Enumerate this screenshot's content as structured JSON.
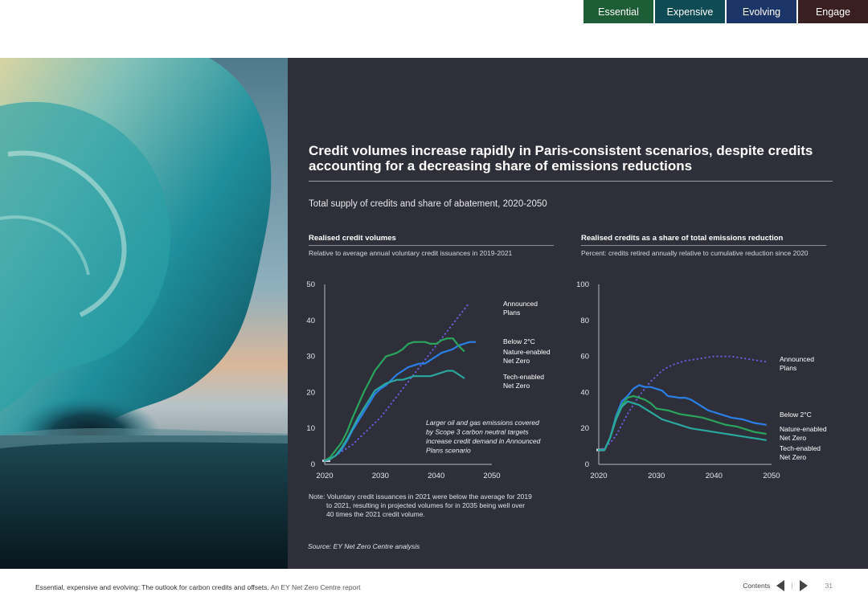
{
  "nav": {
    "tabs": [
      "Essential",
      "Expensive",
      "Evolving",
      "Engage"
    ]
  },
  "panel": {
    "title": "Credit volumes increase rapidly in Paris-consistent scenarios, despite credits accounting for a decreasing share of emissions reductions",
    "subtitle": "Total supply of credits and share of abatement, 2020-2050"
  },
  "left_chart": {
    "heading": "Realised credit volumes",
    "description": "Relative to average annual voluntary credit issuances in 2019-2021",
    "annotation": [
      "Larger oil and gas emissions covered",
      "by Scope 3 carbon neutral targets",
      "increase credit demand in Announced",
      "Plans scenario"
    ]
  },
  "right_chart": {
    "heading": "Realised credits as a share of total emissions reduction",
    "description": "Percent: credits retired annually relative to cumulative reduction since 2020"
  },
  "chart_data": [
    {
      "type": "line",
      "title": "Realised credit volumes",
      "ylim": [
        0,
        50
      ],
      "xlim": [
        2020,
        2050
      ],
      "xticks": [
        "2020",
        "2030",
        "2040",
        "2050"
      ],
      "yticks": [
        "0",
        "10",
        "20",
        "30",
        "40",
        "50"
      ],
      "x": [
        2020,
        2021,
        2022,
        2023,
        2024,
        2025,
        2026,
        2027,
        2028,
        2029,
        2030,
        2031,
        2032,
        2033,
        2034,
        2035,
        2036,
        2037,
        2038,
        2039,
        2040,
        2041,
        2042,
        2043,
        2044,
        2045,
        2046,
        2047,
        2048,
        2049,
        2050
      ],
      "series": [
        {
          "name": "Announced Plans",
          "color": "#6a5ce0",
          "dash": "dotted",
          "values": [
            1,
            1.5,
            2.5,
            3.5,
            4.5,
            5.5,
            7,
            8.5,
            10,
            11.5,
            13,
            15,
            17,
            19,
            21,
            23,
            25,
            27,
            29,
            31,
            33,
            35,
            37,
            39,
            41,
            43,
            45,
            null,
            null,
            null,
            null
          ]
        },
        {
          "name": "Below 2°C",
          "color": "#2a7fe8",
          "dash": "solid",
          "values": [
            1,
            1.5,
            2.5,
            4,
            6.5,
            9.5,
            12,
            14.5,
            17,
            19.5,
            21,
            22,
            23.5,
            25,
            26,
            27,
            27.5,
            28,
            28,
            29,
            30,
            31,
            31.5,
            32,
            33,
            33.5,
            34,
            34,
            null,
            null,
            null
          ]
        },
        {
          "name": "Nature-enabled Net Zero",
          "color": "#2aa55c",
          "dash": "solid",
          "values": [
            1,
            2,
            4,
            6,
            9,
            13,
            16.5,
            20,
            23,
            26,
            28,
            30,
            30.5,
            31,
            32,
            33.5,
            34,
            34,
            34,
            33.5,
            33.5,
            34.5,
            35,
            35,
            33,
            31.5,
            null,
            null,
            null,
            null,
            null
          ]
        },
        {
          "name": "Tech-enabled Net Zero",
          "color": "#2aa8a0",
          "dash": "solid",
          "values": [
            1,
            1.5,
            2.5,
            4.5,
            7,
            10,
            13,
            15.5,
            18,
            20.5,
            21.5,
            22.5,
            23,
            23.5,
            23.5,
            24,
            24.5,
            24.5,
            24.5,
            24.5,
            25,
            25.5,
            26,
            26,
            25,
            24,
            null,
            null,
            null,
            null,
            null
          ]
        }
      ],
      "labels": [
        "Announced",
        "Plans",
        "Below 2°C",
        "Nature-enabled",
        "Net Zero",
        "Tech-enabled",
        "Net Zero"
      ]
    },
    {
      "type": "line",
      "title": "Realised credits as a share of total emissions reduction",
      "ylim": [
        0,
        100
      ],
      "xlim": [
        2020,
        2050
      ],
      "xticks": [
        "2020",
        "2030",
        "2040",
        "2050"
      ],
      "yticks": [
        "0",
        "20",
        "40",
        "60",
        "80",
        "100"
      ],
      "x": [
        2020,
        2021,
        2022,
        2023,
        2024,
        2025,
        2026,
        2027,
        2028,
        2029,
        2030,
        2031,
        2032,
        2033,
        2034,
        2035,
        2036,
        2037,
        2038,
        2039,
        2040,
        2041,
        2042,
        2043,
        2044,
        2045,
        2046,
        2047,
        2048,
        2049,
        2050
      ],
      "series": [
        {
          "name": "Announced Plans",
          "color": "#6a5ce0",
          "dash": "dotted",
          "values": [
            8,
            9,
            12,
            16,
            22,
            28,
            33,
            38,
            42,
            46,
            49,
            52,
            54,
            55.5,
            56.5,
            57.5,
            58,
            58.5,
            59,
            59.5,
            60,
            60,
            60,
            60,
            59.5,
            59,
            58.5,
            58,
            57.5,
            57,
            null
          ]
        },
        {
          "name": "Below 2°C",
          "color": "#2a7fe8",
          "dash": "solid",
          "values": [
            8,
            8,
            15,
            27,
            35,
            38,
            42,
            44,
            43,
            43,
            42,
            41,
            38,
            37.5,
            37,
            37,
            36,
            34,
            32,
            30,
            29,
            28,
            27,
            26,
            25.5,
            25,
            24,
            23,
            22.5,
            22,
            null
          ]
        },
        {
          "name": "Nature-enabled Net Zero",
          "color": "#2aa55c",
          "dash": "solid",
          "values": [
            8,
            8,
            15,
            26,
            33,
            37,
            38,
            37,
            36,
            34,
            31,
            30.5,
            30,
            29,
            28,
            27.5,
            27,
            26.5,
            26,
            25,
            24,
            23,
            22,
            21.5,
            21,
            20,
            19,
            18,
            17.5,
            17,
            null
          ]
        },
        {
          "name": "Tech-enabled Net Zero",
          "color": "#2aa8a0",
          "dash": "solid",
          "values": [
            8,
            8,
            15,
            25,
            32,
            35,
            34,
            33,
            31,
            29,
            27,
            25,
            24,
            23,
            22,
            21,
            20,
            19.5,
            19,
            18.5,
            18,
            17.5,
            17,
            16.5,
            16,
            15.5,
            15,
            14.5,
            14,
            13.5,
            null
          ]
        }
      ],
      "labels": [
        "Announced",
        "Plans",
        "Below 2°C",
        "Nature-enabled",
        "Net Zero",
        "Tech-enabled",
        "Net Zero"
      ]
    }
  ],
  "note": {
    "prefix": "Note:",
    "lines": [
      "Voluntary credit issuances in 2021 were below the average for 2019",
      "to 2021, resulting in projected volumes for in 2035 being well over",
      "40 times the 2021 credit volume."
    ]
  },
  "source": "Source: EY Net Zero Centre analysis",
  "footer": {
    "title": "Essential, expensive and evolving: The outlook for carbon credits and offsets.",
    "subtitle": "An EY Net Zero Centre report",
    "contents": "Contents",
    "separator": "|",
    "page": "31"
  }
}
